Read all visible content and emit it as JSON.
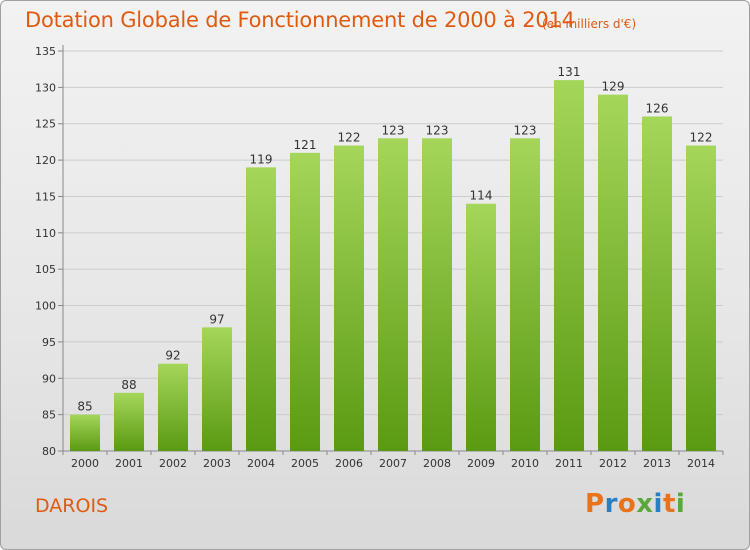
{
  "title": "Dotation Globale de Fonctionnement de 2000 à 2014",
  "unit_note": "(en milliers d'€)",
  "town": "DAROIS",
  "logo": {
    "text": "Proxiti",
    "colors": [
      "#e8731a",
      "#2a7fc1",
      "#e8731a",
      "#5aa83a",
      "#2a7fc1",
      "#e8731a",
      "#5aa83a"
    ]
  },
  "colors": {
    "bar_light": "#a5d65a",
    "bar_dark": "#5a9a12",
    "title": "#e05a10"
  },
  "chart_data": {
    "type": "bar",
    "categories": [
      "2000",
      "2001",
      "2002",
      "2003",
      "2004",
      "2005",
      "2006",
      "2007",
      "2008",
      "2009",
      "2010",
      "2011",
      "2012",
      "2013",
      "2014"
    ],
    "values": [
      85,
      88,
      92,
      97,
      119,
      121,
      122,
      123,
      123,
      114,
      123,
      131,
      129,
      126,
      122
    ],
    "ylim": [
      80,
      135
    ],
    "yticks": [
      80,
      85,
      90,
      95,
      100,
      105,
      110,
      115,
      120,
      125,
      130,
      135
    ],
    "grid": true,
    "xlabel": "",
    "ylabel": ""
  }
}
